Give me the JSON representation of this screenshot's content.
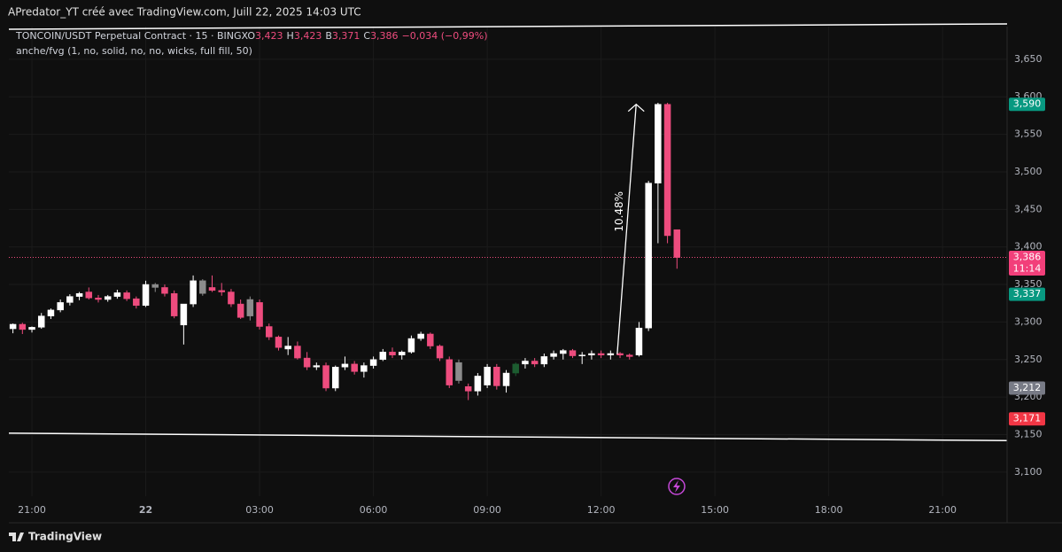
{
  "header": {
    "caption": "APredator_YT créé avec TradingView.com, Juill 22, 2025 14:03 UTC",
    "brand": "TradingView"
  },
  "chart_data": {
    "type": "candlestick",
    "symbol": "TONCOIN/USDT Perpetual Contract · 15 · BINGX",
    "ohlc_legend": [
      {
        "key": "O",
        "value": "3,423"
      },
      {
        "key": "H",
        "value": "3,423"
      },
      {
        "key": "B",
        "value": "3,371"
      },
      {
        "key": "C",
        "value": "3,386"
      }
    ],
    "change": "−0,034 (−0,99%)",
    "indicator": "anche/fvg (1, no, solid, no, no, wicks, full fill, 50)",
    "series": [
      {
        "open": [
          3.291,
          3.297,
          3.29,
          3.293,
          3.308,
          3.316,
          3.326,
          3.334,
          3.34,
          3.332,
          3.33,
          3.334,
          3.339,
          3.331,
          3.322,
          3.35,
          3.346,
          3.338,
          3.296,
          3.324,
          3.355,
          3.346,
          3.342,
          3.34,
          3.324,
          3.308,
          3.326,
          3.294,
          3.28,
          3.264,
          3.268,
          3.252,
          3.24,
          3.242,
          3.212,
          3.24,
          3.244,
          3.234,
          3.242,
          3.25,
          3.26,
          3.256,
          3.26,
          3.278,
          3.284,
          3.268,
          3.25,
          3.222,
          3.214,
          3.208,
          3.216,
          3.24,
          3.215,
          3.232,
          3.244,
          3.248,
          3.244,
          3.254,
          3.258,
          3.262,
          3.255,
          3.256,
          3.258,
          3.256,
          3.258,
          3.256,
          3.256,
          3.292,
          3.485,
          3.59,
          3.423
        ],
        "high": [
          3.298,
          3.299,
          3.294,
          3.312,
          3.318,
          3.33,
          3.337,
          3.34,
          3.346,
          3.336,
          3.336,
          3.343,
          3.342,
          3.334,
          3.355,
          3.352,
          3.35,
          3.342,
          3.322,
          3.362,
          3.357,
          3.362,
          3.352,
          3.344,
          3.33,
          3.334,
          3.33,
          3.298,
          3.282,
          3.28,
          3.274,
          3.26,
          3.246,
          3.246,
          3.242,
          3.254,
          3.248,
          3.246,
          3.254,
          3.264,
          3.266,
          3.262,
          3.282,
          3.287,
          3.286,
          3.27,
          3.254,
          3.25,
          3.218,
          3.232,
          3.244,
          3.244,
          3.236,
          3.246,
          3.252,
          3.252,
          3.258,
          3.262,
          3.264,
          3.264,
          3.26,
          3.262,
          3.262,
          3.262,
          3.26,
          3.258,
          3.3,
          3.488,
          3.592,
          3.592,
          3.423
        ],
        "low": [
          3.285,
          3.284,
          3.286,
          3.291,
          3.304,
          3.313,
          3.322,
          3.329,
          3.33,
          3.326,
          3.327,
          3.331,
          3.328,
          3.318,
          3.32,
          3.34,
          3.334,
          3.305,
          3.27,
          3.32,
          3.335,
          3.34,
          3.335,
          3.32,
          3.304,
          3.302,
          3.29,
          3.276,
          3.262,
          3.256,
          3.25,
          3.236,
          3.236,
          3.208,
          3.208,
          3.236,
          3.23,
          3.226,
          3.238,
          3.248,
          3.252,
          3.25,
          3.258,
          3.275,
          3.264,
          3.248,
          3.212,
          3.218,
          3.196,
          3.202,
          3.212,
          3.21,
          3.206,
          3.228,
          3.238,
          3.24,
          3.24,
          3.25,
          3.25,
          3.252,
          3.244,
          3.25,
          3.252,
          3.25,
          3.252,
          3.25,
          3.254,
          3.288,
          3.405,
          3.405,
          3.371
        ],
        "close": [
          3.297,
          3.29,
          3.293,
          3.308,
          3.316,
          3.326,
          3.334,
          3.338,
          3.332,
          3.33,
          3.334,
          3.339,
          3.331,
          3.322,
          3.35,
          3.346,
          3.338,
          3.308,
          3.324,
          3.355,
          3.338,
          3.342,
          3.34,
          3.324,
          3.306,
          3.33,
          3.294,
          3.28,
          3.266,
          3.268,
          3.252,
          3.24,
          3.242,
          3.212,
          3.24,
          3.244,
          3.234,
          3.242,
          3.25,
          3.26,
          3.256,
          3.26,
          3.278,
          3.284,
          3.268,
          3.252,
          3.216,
          3.246,
          3.208,
          3.228,
          3.24,
          3.215,
          3.232,
          3.244,
          3.248,
          3.244,
          3.254,
          3.258,
          3.262,
          3.255,
          3.256,
          3.258,
          3.256,
          3.258,
          3.256,
          3.254,
          3.292,
          3.485,
          3.59,
          3.415,
          3.386
        ],
        "colors": [
          "#ffffff",
          "#ee4c7e",
          "#ffffff",
          "#ffffff",
          "#ffffff",
          "#ffffff",
          "#ffffff",
          "#ffffff",
          "#ee4c7e",
          "#ee4c7e",
          "#ffffff",
          "#ffffff",
          "#ee4c7e",
          "#ee4c7e",
          "#ffffff",
          "#8c8c8c",
          "#ee4c7e",
          "#ee4c7e",
          "#ffffff",
          "#ffffff",
          "#8c8c8c",
          "#ee4c7e",
          "#ee4c7e",
          "#ee4c7e",
          "#ee4c7e",
          "#8c8c8c",
          "#ee4c7e",
          "#ee4c7e",
          "#ee4c7e",
          "#ffffff",
          "#ee4c7e",
          "#ee4c7e",
          "#ffffff",
          "#ee4c7e",
          "#ffffff",
          "#ffffff",
          "#ee4c7e",
          "#ffffff",
          "#ffffff",
          "#ffffff",
          "#ee4c7e",
          "#ffffff",
          "#ffffff",
          "#ffffff",
          "#ee4c7e",
          "#ee4c7e",
          "#ee4c7e",
          "#8c8c8c",
          "#ee4c7e",
          "#ffffff",
          "#ffffff",
          "#ee4c7e",
          "#ffffff",
          "#1d5c30",
          "#ffffff",
          "#ee4c7e",
          "#ffffff",
          "#ffffff",
          "#ffffff",
          "#ee4c7e",
          "#ffffff",
          "#ffffff",
          "#ee4c7e",
          "#ffffff",
          "#ee4c7e",
          "#ee4c7e",
          "#ffffff",
          "#ffffff",
          "#ffffff",
          "#ee4c7e",
          "#ee4c7e"
        ]
      }
    ],
    "xlim": [
      -0.43,
      104.8
    ],
    "xticks": [
      {
        "value": 2,
        "label": "21:00"
      },
      {
        "value": 14,
        "label": "22"
      },
      {
        "value": 26,
        "label": "03:00"
      },
      {
        "value": 38,
        "label": "06:00"
      },
      {
        "value": 50,
        "label": "09:00"
      },
      {
        "value": 62,
        "label": "12:00"
      },
      {
        "value": 74,
        "label": "15:00"
      },
      {
        "value": 86,
        "label": "18:00"
      },
      {
        "value": 98,
        "label": "21:00"
      }
    ],
    "ylim": [
      3.068,
      3.6935
    ],
    "yticks": [
      {
        "value": 3.1,
        "label": "3,100"
      },
      {
        "value": 3.15,
        "label": "3,150"
      },
      {
        "value": 3.2,
        "label": "3,200"
      },
      {
        "value": 3.25,
        "label": "3,250"
      },
      {
        "value": 3.3,
        "label": "3,300"
      },
      {
        "value": 3.35,
        "label": "3,350"
      },
      {
        "value": 3.4,
        "label": "3,400"
      },
      {
        "value": 3.45,
        "label": "3,450"
      },
      {
        "value": 3.5,
        "label": "3,500"
      },
      {
        "value": 3.55,
        "label": "3,550"
      },
      {
        "value": 3.6,
        "label": "3,600"
      },
      {
        "value": 3.65,
        "label": "3,650"
      }
    ],
    "grid": true,
    "price_line": {
      "value": 3.386,
      "color": "#ee4c7e"
    },
    "price_tags": [
      {
        "value": 3.59,
        "label": "3,590",
        "color": "#089981"
      },
      {
        "value": 3.386,
        "label": "3,386",
        "sub": "11:14",
        "color": "#f23f7a"
      },
      {
        "value": 3.337,
        "label": "3,337",
        "color": "#089981"
      },
      {
        "value": 3.212,
        "label": "3,212",
        "color": "#787b86"
      },
      {
        "value": 3.171,
        "label": "3,171",
        "color": "#f23645"
      }
    ],
    "trendlines": [
      {
        "x": [
          -0.43,
          104.8
        ],
        "y": [
          3.69,
          3.697
        ],
        "color": "#ffffff"
      },
      {
        "x": [
          -0.43,
          104.8
        ],
        "y": [
          3.152,
          3.142
        ],
        "color": "#ffffff"
      }
    ],
    "annotation": {
      "text": "10.48%",
      "x": [
        63.7,
        65.7
      ],
      "y": [
        3.257,
        3.59
      ]
    }
  }
}
